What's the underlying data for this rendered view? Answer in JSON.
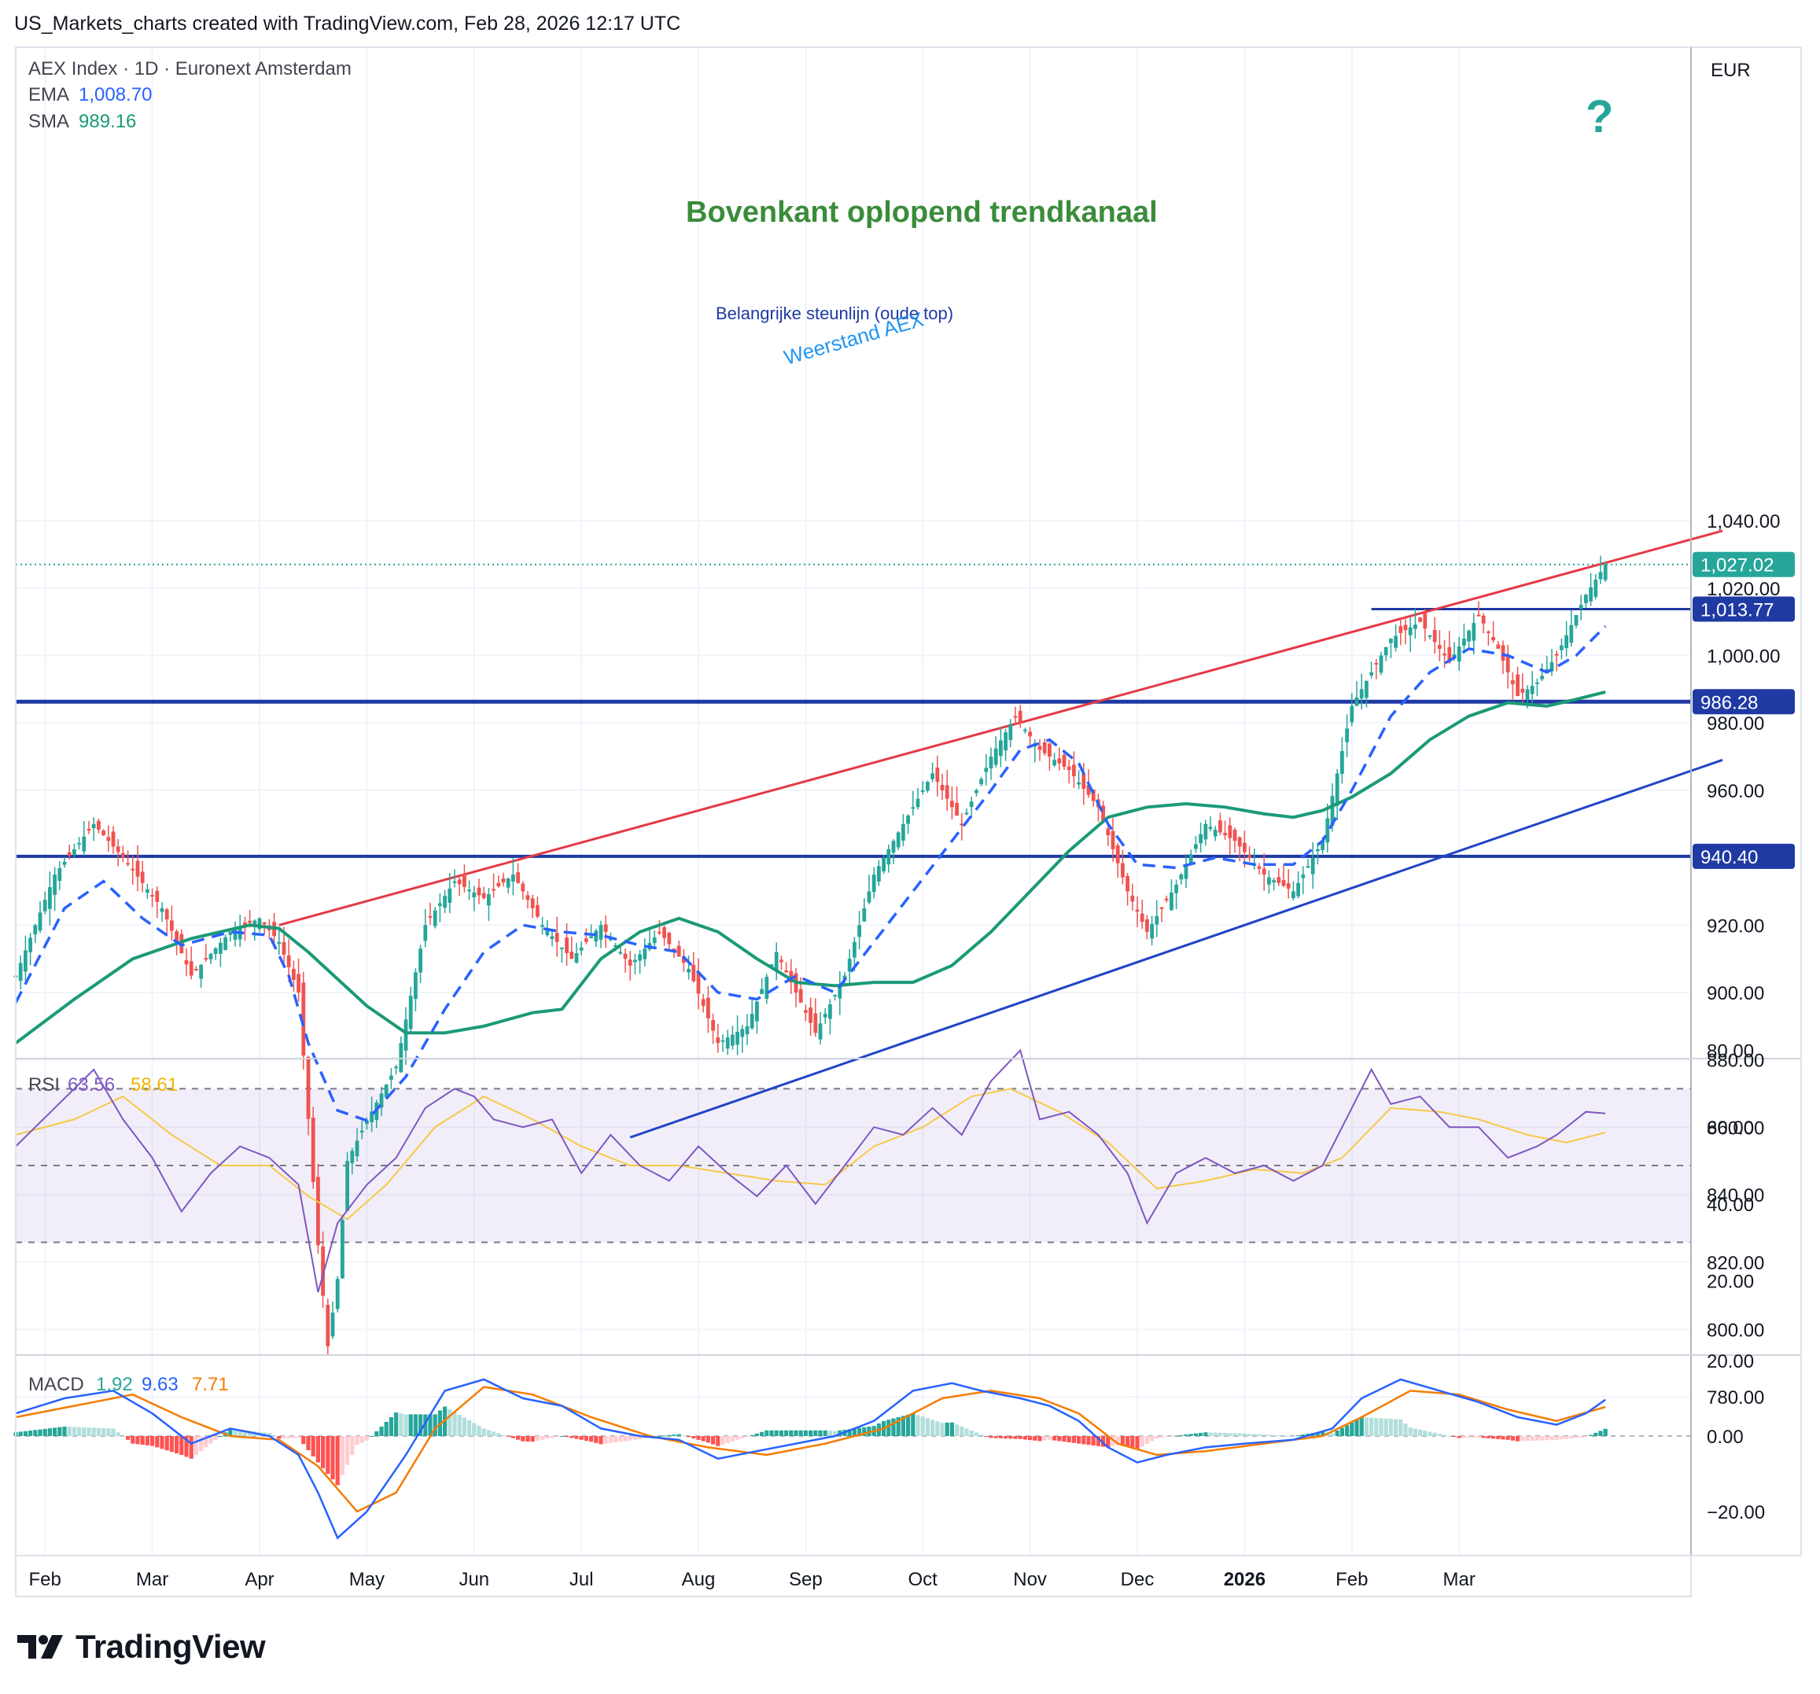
{
  "header": "US_Markets_charts created with TradingView.com, Feb 28, 2026 12:17 UTC",
  "brand": "TradingView",
  "currency": "EUR",
  "legend": {
    "symbol": "AEX Index · 1D · Euronext Amsterdam",
    "ema_label": "EMA",
    "ema_value": "1,008.70",
    "sma_label": "SMA",
    "sma_value": "989.16",
    "rsi_label": "RSI",
    "rsi_value": "63.56",
    "rsi_ma_value": "58.61",
    "macd_label": "MACD",
    "macd_hist": "1.92",
    "macd_line": "9.63",
    "macd_signal": "7.71"
  },
  "annotations": {
    "title": "Bovenkant oplopend trendkanaal",
    "support": "Belangrijke steunlijn (oude top)",
    "resistance": "Weerstand AEX",
    "question": "?"
  },
  "colors": {
    "up": "#26a69a",
    "down": "#ef5350",
    "ema": "#2962ff",
    "sma": "#1b9a77",
    "channel_top": "#e53945",
    "channel_bottom": "#1f44c6",
    "level": "#1f3aa3",
    "title_green": "#3a8c3a",
    "rsi": "#7e57c2",
    "rsi_ma": "#f7c948",
    "macd_line": "#2962ff",
    "macd_signal": "#f57c00"
  },
  "price_badges": [
    {
      "value": 1027.02,
      "label": "1,027.02",
      "color": "#26a69a"
    },
    {
      "value": 1013.77,
      "label": "1,013.77",
      "color": "#1f3aa3"
    },
    {
      "value": 986.28,
      "label": "986.28",
      "color": "#1f3aa3"
    },
    {
      "value": 940.4,
      "label": "940.40",
      "color": "#1f3aa3"
    }
  ],
  "chart_data": {
    "type": "candlestick",
    "x_labels": [
      "Feb",
      "Mar",
      "Apr",
      "May",
      "Jun",
      "Jul",
      "Aug",
      "Sep",
      "Oct",
      "Nov",
      "Dec",
      "2026",
      "Feb",
      "Mar"
    ],
    "y_ticks": [
      1040,
      1020,
      1000,
      980,
      960,
      940,
      920,
      900,
      880,
      860,
      840,
      820,
      800,
      780
    ],
    "y_tick_labels": [
      "1,040.00",
      "1,020.00",
      "1,000.00",
      "980.00",
      "960.00",
      "940.00",
      "920.00",
      "900.00",
      "880.00",
      "860.00",
      "840.00",
      "820.00",
      "800.00",
      "780.00"
    ],
    "price_path": [
      [
        0,
        905
      ],
      [
        8,
        935
      ],
      [
        16,
        950
      ],
      [
        22,
        940
      ],
      [
        30,
        925
      ],
      [
        36,
        905
      ],
      [
        44,
        918
      ],
      [
        50,
        922
      ],
      [
        54,
        915
      ],
      [
        58,
        900
      ],
      [
        62,
        825
      ],
      [
        64,
        795
      ],
      [
        66,
        815
      ],
      [
        68,
        850
      ],
      [
        72,
        862
      ],
      [
        78,
        878
      ],
      [
        84,
        920
      ],
      [
        90,
        933
      ],
      [
        96,
        928
      ],
      [
        102,
        935
      ],
      [
        108,
        920
      ],
      [
        114,
        910
      ],
      [
        120,
        920
      ],
      [
        126,
        908
      ],
      [
        132,
        918
      ],
      [
        138,
        907
      ],
      [
        144,
        885
      ],
      [
        150,
        890
      ],
      [
        156,
        912
      ],
      [
        160,
        900
      ],
      [
        164,
        888
      ],
      [
        170,
        905
      ],
      [
        176,
        935
      ],
      [
        182,
        950
      ],
      [
        188,
        965
      ],
      [
        194,
        950
      ],
      [
        200,
        970
      ],
      [
        205,
        982
      ],
      [
        210,
        972
      ],
      [
        216,
        966
      ],
      [
        222,
        955
      ],
      [
        228,
        930
      ],
      [
        232,
        918
      ],
      [
        238,
        932
      ],
      [
        244,
        950
      ],
      [
        250,
        945
      ],
      [
        256,
        935
      ],
      [
        262,
        930
      ],
      [
        268,
        945
      ],
      [
        274,
        985
      ],
      [
        278,
        995
      ],
      [
        282,
        1005
      ],
      [
        288,
        1010
      ],
      [
        294,
        998
      ],
      [
        300,
        1012
      ],
      [
        304,
        1002
      ],
      [
        308,
        988
      ],
      [
        312,
        992
      ],
      [
        316,
        1000
      ],
      [
        322,
        1018
      ],
      [
        326,
        1027
      ]
    ],
    "ema_path": [
      [
        0,
        897
      ],
      [
        10,
        925
      ],
      [
        18,
        933
      ],
      [
        26,
        922
      ],
      [
        34,
        914
      ],
      [
        44,
        918
      ],
      [
        52,
        917
      ],
      [
        56,
        905
      ],
      [
        60,
        885
      ],
      [
        66,
        865
      ],
      [
        72,
        862
      ],
      [
        80,
        875
      ],
      [
        88,
        895
      ],
      [
        96,
        912
      ],
      [
        104,
        920
      ],
      [
        112,
        918
      ],
      [
        120,
        917
      ],
      [
        128,
        914
      ],
      [
        136,
        912
      ],
      [
        144,
        900
      ],
      [
        152,
        898
      ],
      [
        160,
        905
      ],
      [
        168,
        900
      ],
      [
        176,
        915
      ],
      [
        184,
        930
      ],
      [
        192,
        945
      ],
      [
        200,
        960
      ],
      [
        206,
        972
      ],
      [
        212,
        975
      ],
      [
        218,
        968
      ],
      [
        224,
        950
      ],
      [
        230,
        938
      ],
      [
        238,
        937
      ],
      [
        246,
        940
      ],
      [
        254,
        938
      ],
      [
        262,
        938
      ],
      [
        268,
        945
      ],
      [
        274,
        960
      ],
      [
        282,
        982
      ],
      [
        290,
        995
      ],
      [
        298,
        1002
      ],
      [
        306,
        1000
      ],
      [
        314,
        995
      ],
      [
        320,
        1000
      ],
      [
        326,
        1008.7
      ]
    ],
    "sma_path": [
      [
        0,
        885
      ],
      [
        12,
        898
      ],
      [
        24,
        910
      ],
      [
        36,
        916
      ],
      [
        48,
        920
      ],
      [
        54,
        919
      ],
      [
        60,
        912
      ],
      [
        66,
        904
      ],
      [
        72,
        896
      ],
      [
        80,
        888
      ],
      [
        88,
        888
      ],
      [
        96,
        890
      ],
      [
        106,
        894
      ],
      [
        112,
        895
      ],
      [
        120,
        910
      ],
      [
        128,
        918
      ],
      [
        136,
        922
      ],
      [
        144,
        918
      ],
      [
        152,
        910
      ],
      [
        160,
        903
      ],
      [
        168,
        902
      ],
      [
        176,
        903
      ],
      [
        184,
        903
      ],
      [
        192,
        908
      ],
      [
        200,
        918
      ],
      [
        208,
        930
      ],
      [
        216,
        942
      ],
      [
        224,
        952
      ],
      [
        232,
        955
      ],
      [
        240,
        956
      ],
      [
        248,
        955
      ],
      [
        256,
        953
      ],
      [
        262,
        952
      ],
      [
        268,
        954
      ],
      [
        274,
        958
      ],
      [
        282,
        965
      ],
      [
        290,
        975
      ],
      [
        298,
        982
      ],
      [
        306,
        986
      ],
      [
        314,
        985
      ],
      [
        320,
        987
      ],
      [
        326,
        989.16
      ]
    ],
    "channel_top": {
      "start": [
        54,
        920
      ],
      "end": [
        350,
        1037
      ]
    },
    "channel_bottom": {
      "start": [
        126,
        857
      ],
      "end": [
        350,
        969
      ]
    },
    "levels": [
      986.28,
      940.4,
      1013.77
    ],
    "rsi": {
      "ticks": [
        80,
        60,
        40,
        20
      ],
      "tick_labels": [
        "80.00",
        "60.00",
        "40.00",
        "20.00"
      ],
      "upper": 70,
      "middle": 50,
      "lower": 30,
      "path": [
        [
          0,
          55
        ],
        [
          8,
          65
        ],
        [
          16,
          75
        ],
        [
          22,
          62
        ],
        [
          28,
          52
        ],
        [
          34,
          38
        ],
        [
          40,
          48
        ],
        [
          46,
          55
        ],
        [
          52,
          52
        ],
        [
          58,
          45
        ],
        [
          62,
          17
        ],
        [
          66,
          35
        ],
        [
          72,
          45
        ],
        [
          78,
          52
        ],
        [
          84,
          65
        ],
        [
          90,
          70
        ],
        [
          94,
          68
        ],
        [
          98,
          62
        ],
        [
          104,
          60
        ],
        [
          110,
          62
        ],
        [
          116,
          48
        ],
        [
          122,
          58
        ],
        [
          128,
          50
        ],
        [
          134,
          46
        ],
        [
          140,
          55
        ],
        [
          146,
          48
        ],
        [
          152,
          42
        ],
        [
          158,
          50
        ],
        [
          164,
          40
        ],
        [
          170,
          50
        ],
        [
          176,
          60
        ],
        [
          182,
          58
        ],
        [
          188,
          65
        ],
        [
          194,
          58
        ],
        [
          200,
          72
        ],
        [
          206,
          80
        ],
        [
          210,
          62
        ],
        [
          216,
          64
        ],
        [
          222,
          58
        ],
        [
          228,
          48
        ],
        [
          232,
          35
        ],
        [
          238,
          48
        ],
        [
          244,
          52
        ],
        [
          250,
          48
        ],
        [
          256,
          50
        ],
        [
          262,
          46
        ],
        [
          268,
          50
        ],
        [
          274,
          65
        ],
        [
          278,
          75
        ],
        [
          282,
          66
        ],
        [
          288,
          68
        ],
        [
          294,
          60
        ],
        [
          300,
          60
        ],
        [
          306,
          52
        ],
        [
          312,
          55
        ],
        [
          316,
          58
        ],
        [
          322,
          64
        ],
        [
          326,
          63.56
        ]
      ],
      "ma_path": [
        [
          0,
          58
        ],
        [
          12,
          62
        ],
        [
          22,
          68
        ],
        [
          32,
          58
        ],
        [
          42,
          50
        ],
        [
          52,
          50
        ],
        [
          60,
          42
        ],
        [
          68,
          36
        ],
        [
          76,
          45
        ],
        [
          86,
          60
        ],
        [
          96,
          68
        ],
        [
          106,
          62
        ],
        [
          116,
          55
        ],
        [
          126,
          50
        ],
        [
          136,
          50
        ],
        [
          146,
          48
        ],
        [
          156,
          46
        ],
        [
          166,
          45
        ],
        [
          176,
          55
        ],
        [
          186,
          60
        ],
        [
          196,
          68
        ],
        [
          204,
          70
        ],
        [
          214,
          64
        ],
        [
          224,
          56
        ],
        [
          234,
          44
        ],
        [
          244,
          46
        ],
        [
          254,
          49
        ],
        [
          264,
          48
        ],
        [
          272,
          52
        ],
        [
          282,
          65
        ],
        [
          292,
          64
        ],
        [
          300,
          62
        ],
        [
          310,
          58
        ],
        [
          318,
          56
        ],
        [
          326,
          58.61
        ]
      ]
    },
    "macd": {
      "ticks": [
        20,
        0,
        -20
      ],
      "tick_labels": [
        "20.00",
        "0.00",
        "−20.00"
      ],
      "line_path": [
        [
          0,
          6
        ],
        [
          10,
          10
        ],
        [
          20,
          12
        ],
        [
          28,
          6
        ],
        [
          36,
          -2
        ],
        [
          44,
          2
        ],
        [
          52,
          0
        ],
        [
          58,
          -5
        ],
        [
          62,
          -15
        ],
        [
          66,
          -27
        ],
        [
          72,
          -20
        ],
        [
          80,
          -5
        ],
        [
          88,
          12
        ],
        [
          96,
          15
        ],
        [
          104,
          10
        ],
        [
          112,
          8
        ],
        [
          120,
          2
        ],
        [
          128,
          0
        ],
        [
          136,
          -1
        ],
        [
          144,
          -6
        ],
        [
          152,
          -4
        ],
        [
          160,
          -2
        ],
        [
          168,
          0
        ],
        [
          176,
          4
        ],
        [
          184,
          12
        ],
        [
          192,
          14
        ],
        [
          198,
          12
        ],
        [
          206,
          10
        ],
        [
          212,
          8
        ],
        [
          218,
          4
        ],
        [
          224,
          -3
        ],
        [
          230,
          -7
        ],
        [
          236,
          -5
        ],
        [
          244,
          -3
        ],
        [
          252,
          -2
        ],
        [
          262,
          -1
        ],
        [
          270,
          2
        ],
        [
          276,
          10
        ],
        [
          284,
          15
        ],
        [
          292,
          12
        ],
        [
          300,
          9
        ],
        [
          308,
          5
        ],
        [
          316,
          3
        ],
        [
          322,
          6
        ],
        [
          326,
          9.63
        ]
      ],
      "signal_path": [
        [
          0,
          5
        ],
        [
          12,
          8
        ],
        [
          24,
          11
        ],
        [
          34,
          5
        ],
        [
          44,
          0
        ],
        [
          54,
          -1
        ],
        [
          62,
          -8
        ],
        [
          70,
          -20
        ],
        [
          78,
          -15
        ],
        [
          86,
          2
        ],
        [
          96,
          13
        ],
        [
          106,
          11
        ],
        [
          118,
          5
        ],
        [
          130,
          0
        ],
        [
          142,
          -3
        ],
        [
          154,
          -5
        ],
        [
          166,
          -2
        ],
        [
          178,
          2
        ],
        [
          190,
          10
        ],
        [
          200,
          12
        ],
        [
          210,
          10
        ],
        [
          218,
          6
        ],
        [
          226,
          -2
        ],
        [
          234,
          -5
        ],
        [
          244,
          -4
        ],
        [
          256,
          -2
        ],
        [
          268,
          0
        ],
        [
          276,
          5
        ],
        [
          286,
          12
        ],
        [
          296,
          11
        ],
        [
          306,
          7
        ],
        [
          316,
          4
        ],
        [
          326,
          7.71
        ]
      ]
    }
  }
}
